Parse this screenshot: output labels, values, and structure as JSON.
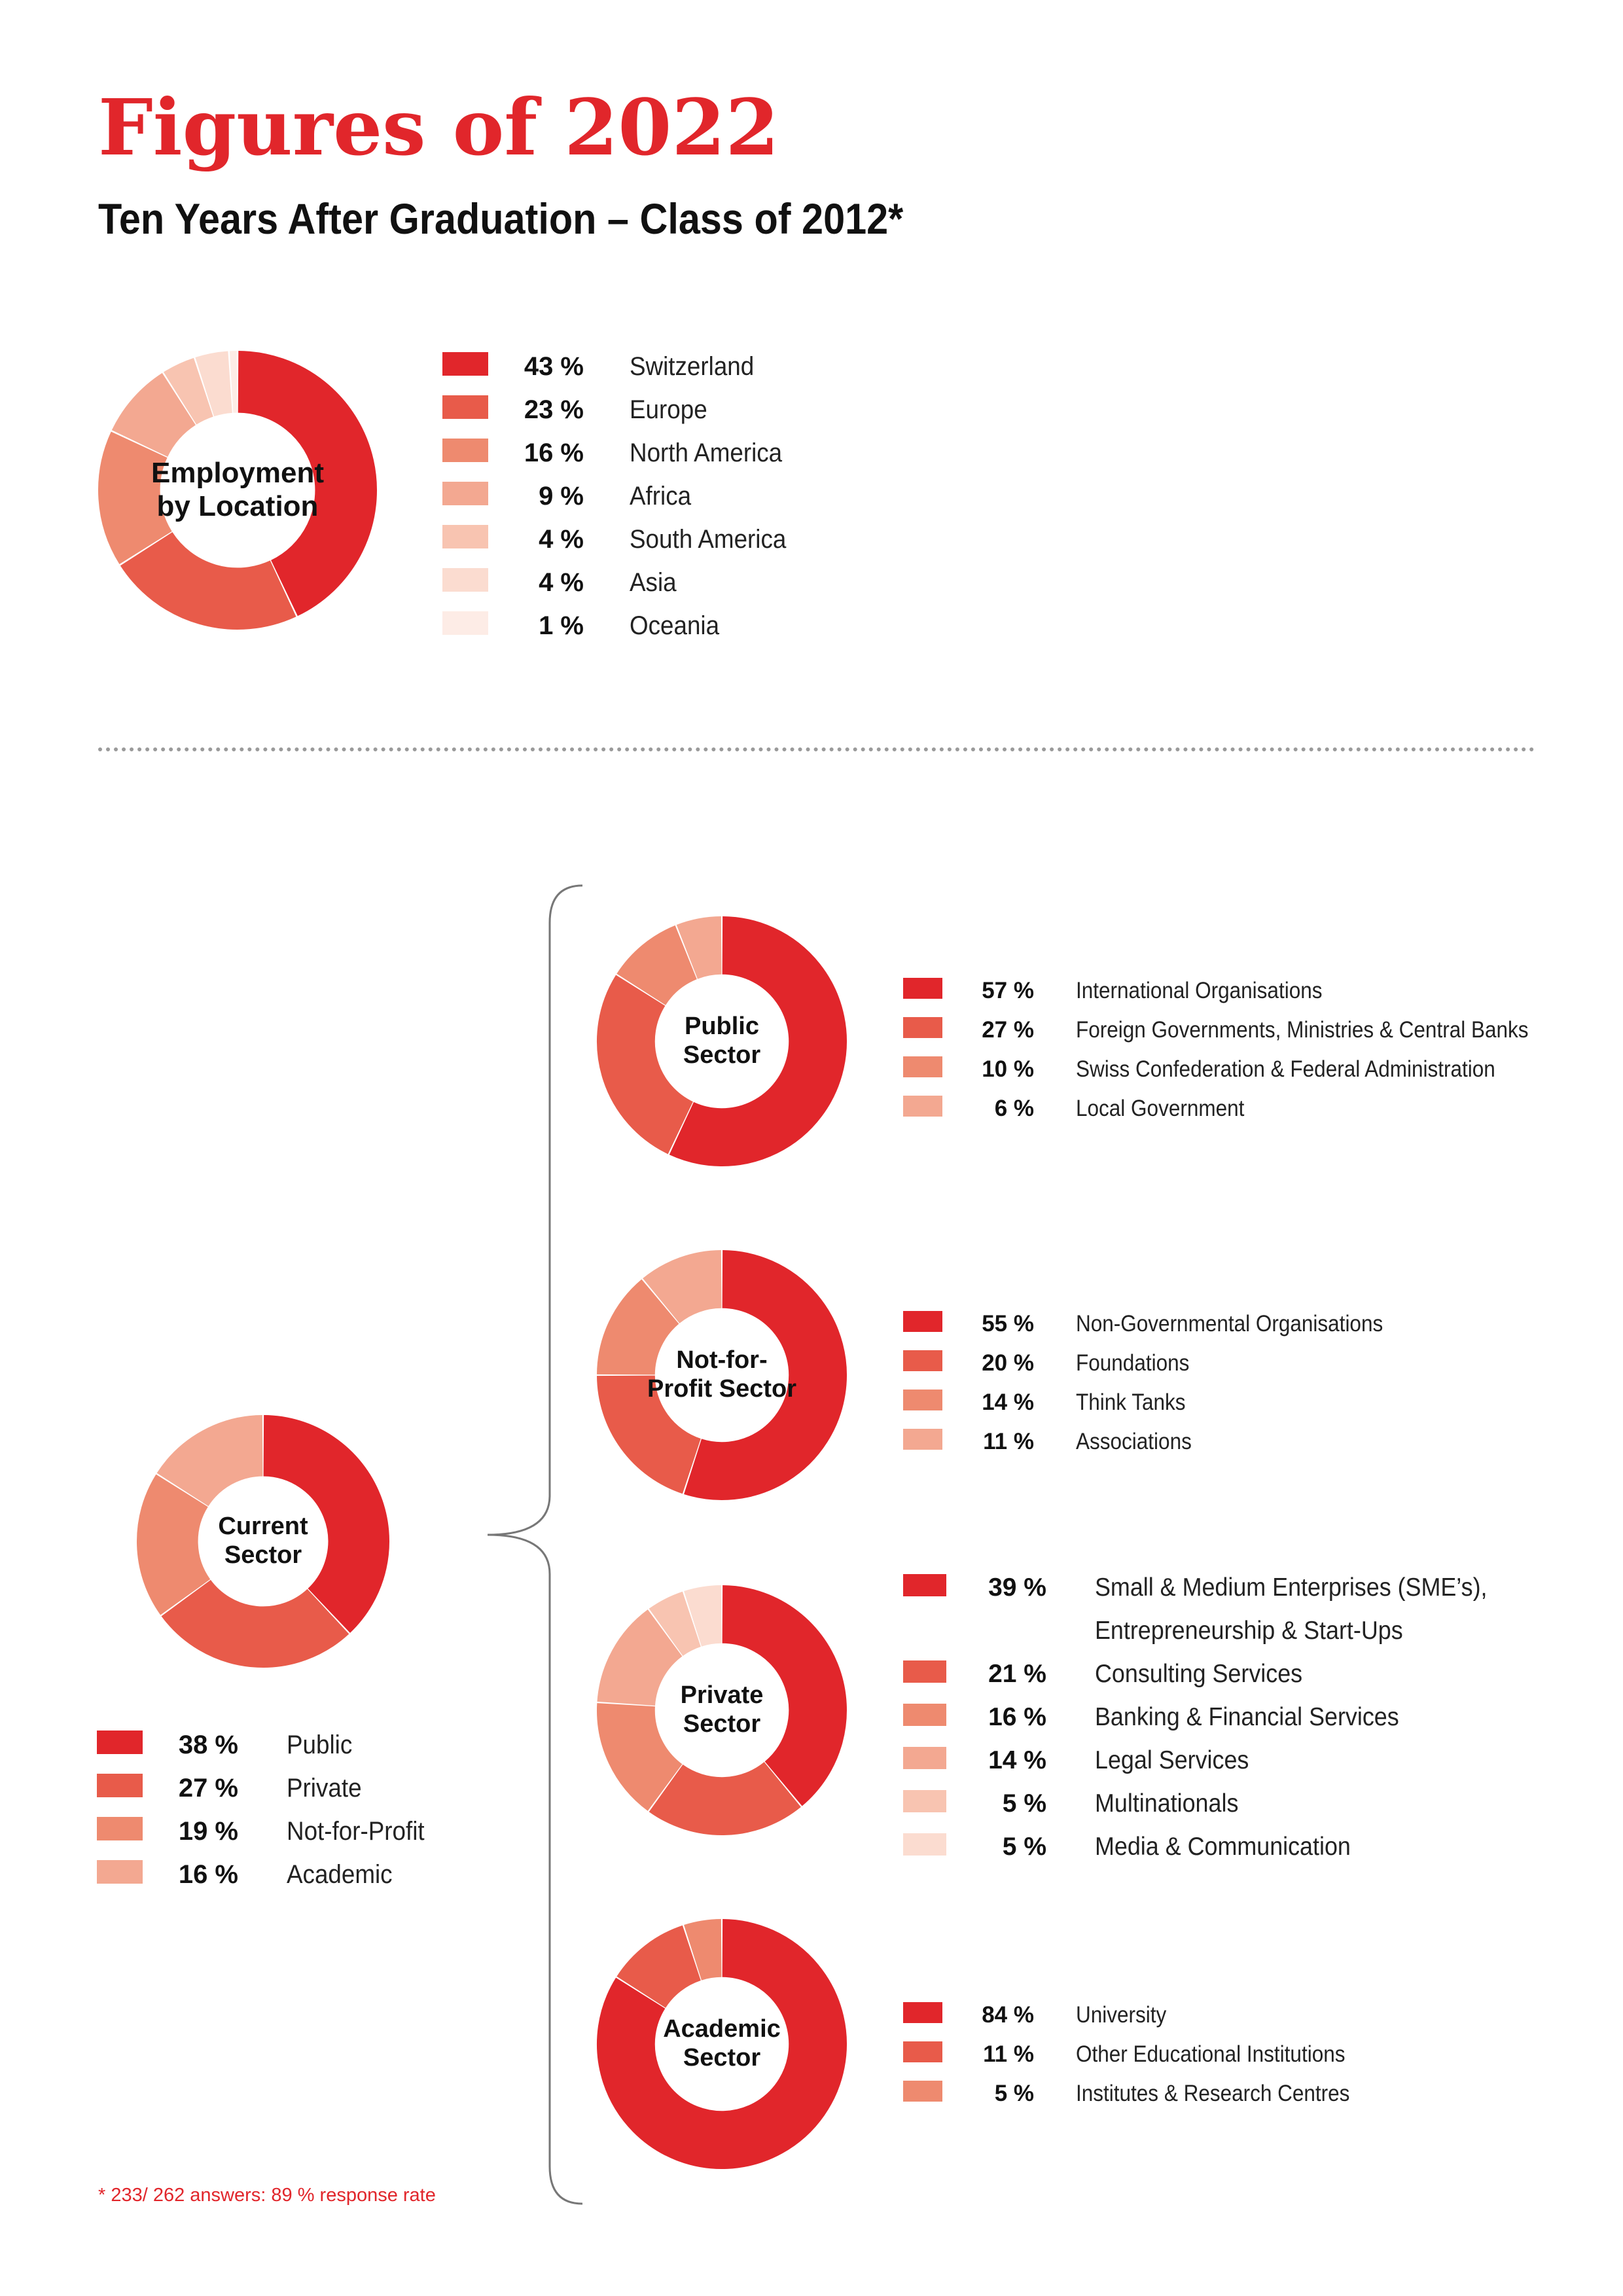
{
  "header": {
    "title": "Figures of 2022",
    "subtitle": "Ten Years After Graduation – Class of 2012*"
  },
  "footnote": "* 233/ 262 answers: 89 % response rate",
  "palette": [
    "#e1262b",
    "#e85b4a",
    "#ee8a6f",
    "#f3a891",
    "#f8c4b1",
    "#fbdcd0",
    "#fdece6"
  ],
  "chart_data": [
    {
      "id": "location",
      "type": "pie",
      "title": "Employment\nby Location",
      "categories": [
        "Switzerland",
        "Europe",
        "North America",
        "Africa",
        "South America",
        "Asia",
        "Oceania"
      ],
      "values": [
        43,
        23,
        16,
        9,
        4,
        4,
        1
      ],
      "value_labels": [
        "43 %",
        "23 %",
        "16 %",
        "9 %",
        "4 %",
        "4 %",
        "1 %"
      ]
    },
    {
      "id": "current",
      "type": "pie",
      "title": "Current\nSector",
      "categories": [
        "Public",
        "Private",
        "Not-for-Profit",
        "Academic"
      ],
      "values": [
        38,
        27,
        19,
        16
      ],
      "value_labels": [
        "38 %",
        "27 %",
        "19 %",
        "16 %"
      ]
    },
    {
      "id": "public",
      "type": "pie",
      "title": "Public\nSector",
      "categories": [
        "International Organisations",
        "Foreign Governments, Ministries & Central Banks",
        "Swiss Confederation & Federal Administration",
        "Local Government"
      ],
      "values": [
        57,
        27,
        10,
        6
      ],
      "value_labels": [
        "57 %",
        "27 %",
        "10 %",
        "6 %"
      ]
    },
    {
      "id": "nfp",
      "type": "pie",
      "title": "Not-for-\nProfit Sector",
      "categories": [
        "Non-Governmental Organisations",
        "Foundations",
        "Think Tanks",
        "Associations"
      ],
      "values": [
        55,
        20,
        14,
        11
      ],
      "value_labels": [
        "55 %",
        "20 %",
        "14 %",
        "11 %"
      ]
    },
    {
      "id": "private",
      "type": "pie",
      "title": "Private\nSector",
      "categories": [
        "Small & Medium Enterprises (SME’s),\nEntrepreneurship & Start-Ups",
        "Consulting Services",
        "Banking & Financial Services",
        "Legal Services",
        "Multinationals",
        "Media & Communication"
      ],
      "values": [
        39,
        21,
        16,
        14,
        5,
        5
      ],
      "value_labels": [
        "39 %",
        "21 %",
        "16 %",
        "14 %",
        "5 %",
        "5 %"
      ]
    },
    {
      "id": "academic",
      "type": "pie",
      "title": "Academic\nSector",
      "categories": [
        "University",
        "Other Educational Institutions",
        "Institutes & Research Centres"
      ],
      "values": [
        84,
        11,
        5
      ],
      "value_labels": [
        "84 %",
        "11 %",
        "5 %"
      ]
    }
  ]
}
